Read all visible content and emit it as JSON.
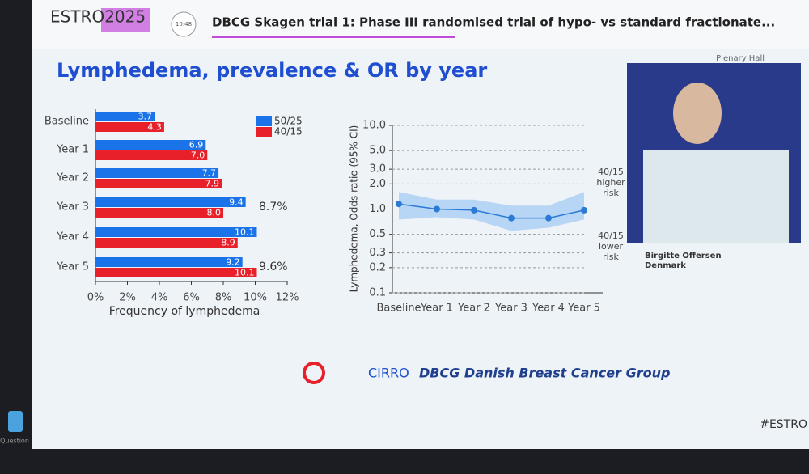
{
  "header": {
    "logo": "ESTRO2025",
    "time": "10:48",
    "talk_title": "DBCG Skagen trial 1: Phase III randomised trial of hypo- vs standard fractionate...",
    "room": "Plenary Hall"
  },
  "slide_title": "Lymphedema, prevalence & OR by year",
  "chart_data": [
    {
      "type": "hbar",
      "categories": [
        "Baseline",
        "Year 1",
        "Year 2",
        "Year 3",
        "Year 4",
        "Year 5"
      ],
      "series": [
        {
          "name": "50/25",
          "color": "#1a73e8",
          "values": [
            3.7,
            6.9,
            7.7,
            9.4,
            10.1,
            9.2
          ],
          "value_labels": [
            "3.7",
            "6.9",
            "7.7",
            "9.4",
            "10.1",
            "9.2"
          ]
        },
        {
          "name": "40/15",
          "color": "#e8202a",
          "values": [
            4.3,
            7.0,
            7.9,
            8.0,
            8.9,
            10.1
          ],
          "value_labels": [
            "4.3",
            "7.0",
            "7.9",
            "8.0",
            "8.9",
            "10.1"
          ]
        }
      ],
      "xlim": [
        0,
        12
      ],
      "xticks": [
        {
          "value": 0,
          "label": "0%"
        },
        {
          "value": 2,
          "label": "2%"
        },
        {
          "value": 4,
          "label": "4%"
        },
        {
          "value": 6,
          "label": "6%"
        },
        {
          "value": 8,
          "label": "8%"
        },
        {
          "value": 10,
          "label": "10%"
        },
        {
          "value": 12,
          "label": "12%"
        }
      ],
      "xlabel": "Frequency of lymphedema",
      "annotations": [
        {
          "category": "Year 3",
          "text": "8.7%"
        },
        {
          "category": "Year 5",
          "text": "9.6%"
        }
      ]
    },
    {
      "type": "line",
      "log_y": true,
      "categories": [
        "Baseline",
        "Year 1",
        "Year 2",
        "Year 3",
        "Year 4",
        "Year 5"
      ],
      "values": [
        1.15,
        1.0,
        0.97,
        0.78,
        0.78,
        0.97
      ],
      "ci_lower": [
        0.75,
        0.8,
        0.75,
        0.55,
        0.6,
        0.75
      ],
      "ci_upper": [
        1.6,
        1.3,
        1.3,
        1.1,
        1.1,
        1.6
      ],
      "color": "#2b7bd6",
      "band_color": "#a9cdf2",
      "ylim": [
        0.1,
        10
      ],
      "yticks": [
        0.1,
        0.2,
        0.3,
        0.5,
        {
          "value": 1,
          "label": "1.0"
        },
        {
          "value": 2,
          "label": "2.0"
        },
        {
          "value": 3,
          "label": "3.0"
        },
        {
          "value": 5,
          "label": "5.0"
        },
        {
          "value": 10,
          "label": "10.0"
        }
      ],
      "ylabel": "Lymphedema, Odds ratio (95% CI)",
      "grid": true,
      "annotations": [
        {
          "lines": [
            "40/15",
            "higher",
            "risk"
          ]
        },
        {
          "lines": [
            "40/15",
            "lower",
            "risk"
          ]
        }
      ]
    }
  ],
  "speaker": {
    "name": "Birgitte Offersen",
    "country": "Denmark"
  },
  "footer": {
    "logo1": "CIRRO",
    "logo2": "DBCG Danish Breast Cancer Group",
    "hashtag": "#ESTRO",
    "question": "Question"
  }
}
